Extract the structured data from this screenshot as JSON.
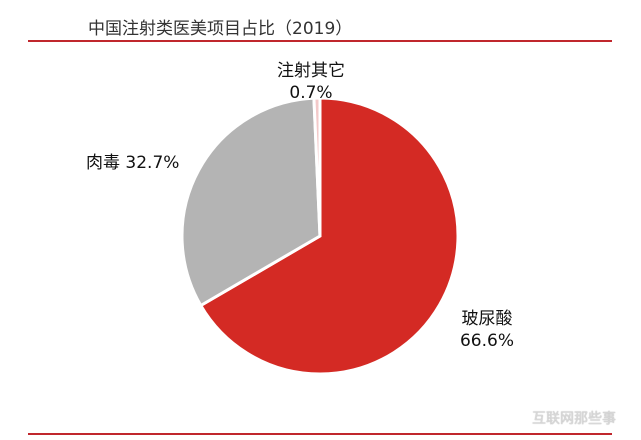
{
  "title": "中国注射类医美项目占比（2019）",
  "colors": {
    "rule": "#c0272d",
    "hyaluronic": "#d42a24",
    "botox": "#b4b4b4",
    "other": "#f3c9c9",
    "separator": "#ffffff"
  },
  "chart_data": {
    "type": "pie",
    "title": "中国注射类医美项目占比（2019）",
    "start_angle_deg": 0,
    "direction": "clockwise",
    "slices": [
      {
        "name": "玻尿酸",
        "value": 66.6,
        "label": "66.6%"
      },
      {
        "name": "肉毒",
        "value": 32.7,
        "label": "32.7%"
      },
      {
        "name": "注射其它",
        "value": 0.7,
        "label": "0.7%"
      }
    ]
  },
  "watermark": "互联网那些事"
}
